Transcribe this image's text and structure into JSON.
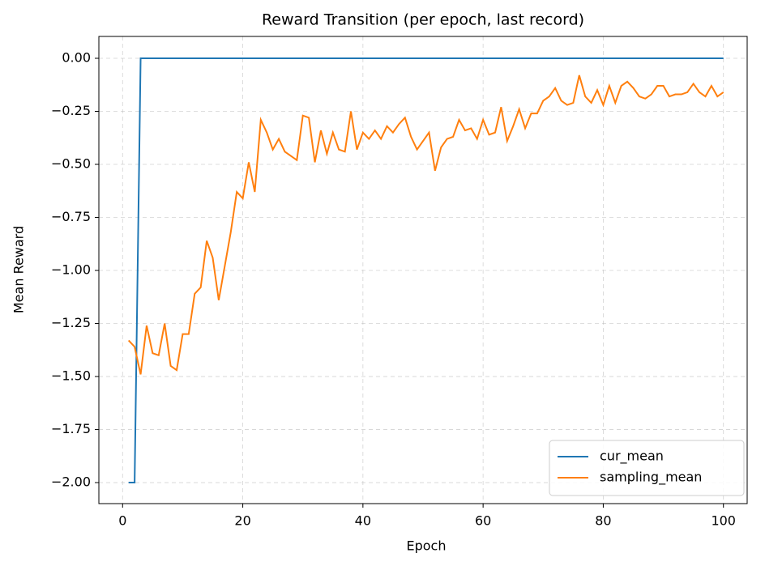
{
  "chart_data": {
    "type": "line",
    "title": "Reward Transition (per epoch, last record)",
    "x_label": "Epoch",
    "y_label": "Mean Reward",
    "x": [
      1,
      2,
      3,
      4,
      5,
      6,
      7,
      8,
      9,
      10,
      11,
      12,
      13,
      14,
      15,
      16,
      17,
      18,
      19,
      20,
      21,
      22,
      23,
      24,
      25,
      26,
      27,
      28,
      29,
      30,
      31,
      32,
      33,
      34,
      35,
      36,
      37,
      38,
      39,
      40,
      41,
      42,
      43,
      44,
      45,
      46,
      47,
      48,
      49,
      50,
      51,
      52,
      53,
      54,
      55,
      56,
      57,
      58,
      59,
      60,
      61,
      62,
      63,
      64,
      65,
      66,
      67,
      68,
      69,
      70,
      71,
      72,
      73,
      74,
      75,
      76,
      77,
      78,
      79,
      80,
      81,
      82,
      83,
      84,
      85,
      86,
      87,
      88,
      89,
      90,
      91,
      92,
      93,
      94,
      95,
      96,
      97,
      98,
      99,
      100
    ],
    "series": [
      {
        "name": "cur_mean",
        "color": "#1f77b4",
        "values": [
          -2,
          -2,
          0,
          0,
          0,
          0,
          0,
          0,
          0,
          0,
          0,
          0,
          0,
          0,
          0,
          0,
          0,
          0,
          0,
          0,
          0,
          0,
          0,
          0,
          0,
          0,
          0,
          0,
          0,
          0,
          0,
          0,
          0,
          0,
          0,
          0,
          0,
          0,
          0,
          0,
          0,
          0,
          0,
          0,
          0,
          0,
          0,
          0,
          0,
          0,
          0,
          0,
          0,
          0,
          0,
          0,
          0,
          0,
          0,
          0,
          0,
          0,
          0,
          0,
          0,
          0,
          0,
          0,
          0,
          0,
          0,
          0,
          0,
          0,
          0,
          0,
          0,
          0,
          0,
          0,
          0,
          0,
          0,
          0,
          0,
          0,
          0,
          0,
          0,
          0,
          0,
          0,
          0,
          0,
          0,
          0,
          0,
          0,
          0,
          0
        ]
      },
      {
        "name": "sampling_mean",
        "color": "#ff7f0e",
        "values": [
          -1.33,
          -1.36,
          -1.49,
          -1.26,
          -1.39,
          -1.4,
          -1.25,
          -1.45,
          -1.47,
          -1.3,
          -1.3,
          -1.11,
          -1.08,
          -0.86,
          -0.94,
          -1.14,
          -0.98,
          -0.82,
          -0.63,
          -0.66,
          -0.49,
          -0.63,
          -0.29,
          -0.35,
          -0.43,
          -0.38,
          -0.44,
          -0.46,
          -0.48,
          -0.27,
          -0.28,
          -0.49,
          -0.34,
          -0.45,
          -0.35,
          -0.43,
          -0.44,
          -0.25,
          -0.43,
          -0.35,
          -0.38,
          -0.34,
          -0.38,
          -0.32,
          -0.35,
          -0.31,
          -0.28,
          -0.37,
          -0.43,
          -0.39,
          -0.35,
          -0.53,
          -0.42,
          -0.38,
          -0.37,
          -0.29,
          -0.34,
          -0.33,
          -0.38,
          -0.29,
          -0.36,
          -0.35,
          -0.23,
          -0.39,
          -0.32,
          -0.24,
          -0.33,
          -0.26,
          -0.26,
          -0.2,
          -0.18,
          -0.14,
          -0.2,
          -0.22,
          -0.21,
          -0.08,
          -0.18,
          -0.21,
          -0.15,
          -0.22,
          -0.13,
          -0.21,
          -0.13,
          -0.11,
          -0.14,
          -0.18,
          -0.19,
          -0.17,
          -0.13,
          -0.13,
          -0.18,
          -0.17,
          -0.17,
          -0.16,
          -0.12,
          -0.16,
          -0.18,
          -0.13,
          -0.18,
          -0.16
        ]
      }
    ],
    "xlim": [
      -3.95,
      103.95
    ],
    "ylim": [
      -2.099,
      0.103
    ],
    "xticks": [
      0,
      20,
      40,
      60,
      80,
      100
    ],
    "yticks": [
      {
        "value": 0,
        "label": "0.00"
      },
      {
        "value": -0.25,
        "label": "−0.25"
      },
      {
        "value": -0.5,
        "label": "−0.50"
      },
      {
        "value": -0.75,
        "label": "−0.75"
      },
      {
        "value": -1,
        "label": "−1.00"
      },
      {
        "value": -1.25,
        "label": "−1.25"
      },
      {
        "value": -1.5,
        "label": "−1.50"
      },
      {
        "value": -1.75,
        "label": "−1.75"
      },
      {
        "value": -2,
        "label": "−2.00"
      }
    ],
    "grid": true,
    "legend": "lower right"
  }
}
